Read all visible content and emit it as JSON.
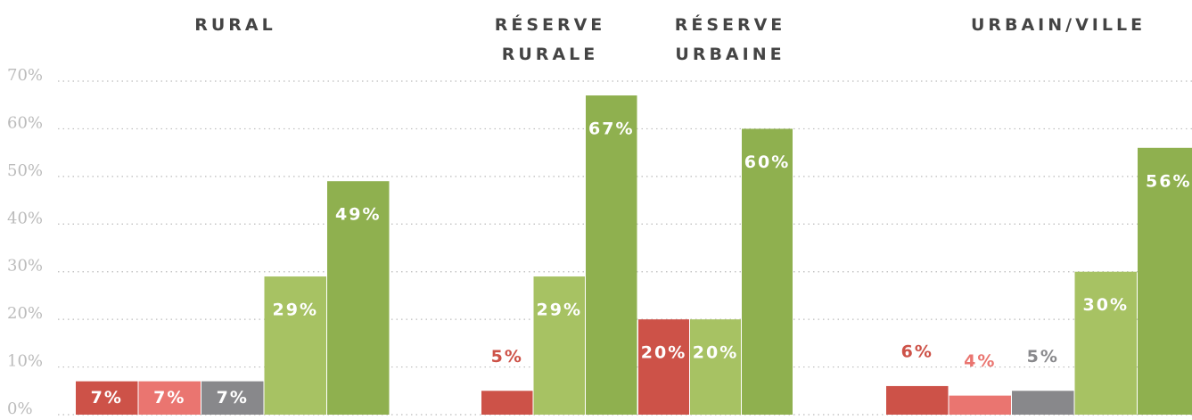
{
  "chart_data": {
    "type": "bar",
    "categories": [
      "RURAL",
      "RÉSERVE RURALE",
      "RÉSERVE URBAINE",
      "URBAIN/VILLE"
    ],
    "series": [
      {
        "color": "#cd5248",
        "values": [
          7,
          5,
          20,
          6
        ],
        "value_labels": [
          "7%",
          "5%",
          "20%",
          "6%"
        ]
      },
      {
        "color": "#ea7570",
        "values": [
          7,
          null,
          null,
          4
        ],
        "value_labels": [
          "7%",
          null,
          null,
          "4%"
        ]
      },
      {
        "color": "#88888b",
        "values": [
          7,
          null,
          null,
          5
        ],
        "value_labels": [
          "7%",
          null,
          null,
          "5%"
        ]
      },
      {
        "color": "#a7c263",
        "values": [
          29,
          29,
          20,
          30
        ],
        "value_labels": [
          "29%",
          "29%",
          "20%",
          "30%"
        ]
      },
      {
        "color": "#8fb04f",
        "values": [
          49,
          67,
          60,
          56
        ],
        "value_labels": [
          "49%",
          "67%",
          "60%",
          "56%"
        ]
      }
    ],
    "ylim": [
      0,
      70
    ],
    "yticks": [
      {
        "value": 0,
        "label": "0%"
      },
      {
        "value": 10,
        "label": "10%"
      },
      {
        "value": 20,
        "label": "20%"
      },
      {
        "value": 30,
        "label": "30%"
      },
      {
        "value": 40,
        "label": "40%"
      },
      {
        "value": 50,
        "label": "50%"
      },
      {
        "value": 60,
        "label": "60%"
      },
      {
        "value": 70,
        "label": "70%"
      }
    ],
    "grid": true
  }
}
